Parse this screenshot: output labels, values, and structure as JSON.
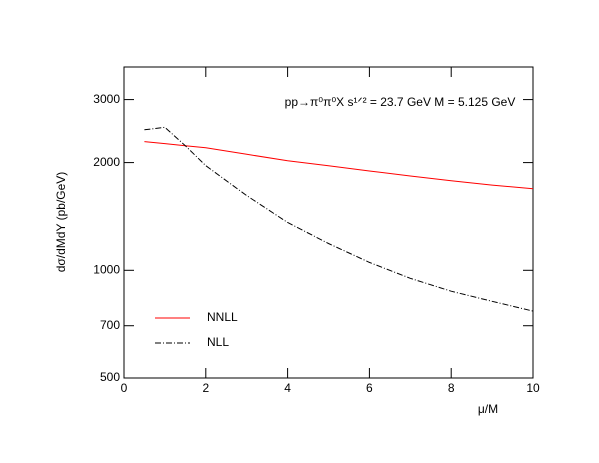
{
  "chart_data": {
    "type": "line",
    "annotation": "pp→π⁰π⁰X   s¹ᐟ² = 23.7 GeV   M = 5.125 GeV",
    "x_label": "μ/M",
    "y_label": "dσ/dMdY (pb/GeV)",
    "x": [
      0.5,
      1,
      1.5,
      2,
      3,
      4,
      5,
      6,
      7,
      8,
      9,
      10
    ],
    "series": [
      {
        "name": "NNLL",
        "color": "#ff0000",
        "linestyle": "solid",
        "values": [
          2290,
          2260,
          2230,
          2200,
          2110,
          2025,
          1960,
          1895,
          1835,
          1780,
          1730,
          1690
        ]
      },
      {
        "name": "NLL",
        "color": "#000000",
        "linestyle": "dashdot",
        "values": [
          2470,
          2510,
          2230,
          1960,
          1617,
          1360,
          1188,
          1052,
          950,
          874,
          819,
          769
        ]
      }
    ],
    "xlim": [
      0,
      10
    ],
    "xticks": [
      0,
      2,
      4,
      6,
      8,
      10
    ],
    "ylim": [
      500,
      3700
    ],
    "yticks": [
      500,
      700,
      1000,
      2000,
      3000
    ],
    "log_y": true,
    "grid": false,
    "legend": "lower left"
  }
}
